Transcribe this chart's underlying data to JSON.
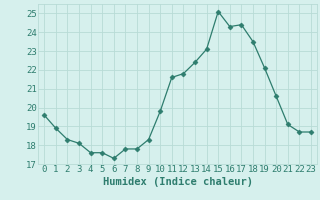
{
  "x": [
    0,
    1,
    2,
    3,
    4,
    5,
    6,
    7,
    8,
    9,
    10,
    11,
    12,
    13,
    14,
    15,
    16,
    17,
    18,
    19,
    20,
    21,
    22,
    23
  ],
  "y": [
    19.6,
    18.9,
    18.3,
    18.1,
    17.6,
    17.6,
    17.3,
    17.8,
    17.8,
    18.3,
    19.8,
    21.6,
    21.8,
    22.4,
    23.1,
    25.1,
    24.3,
    24.4,
    23.5,
    22.1,
    20.6,
    19.1,
    18.7,
    18.7
  ],
  "line_color": "#2e7d6e",
  "marker": "D",
  "marker_size": 2.5,
  "bg_color": "#d6f0ed",
  "grid_color": "#b8dbd6",
  "tick_color": "#2e7d6e",
  "label_color": "#2e7d6e",
  "xlabel": "Humidex (Indice chaleur)",
  "xlim": [
    -0.5,
    23.5
  ],
  "ylim": [
    17,
    25.5
  ],
  "yticks": [
    17,
    18,
    19,
    20,
    21,
    22,
    23,
    24,
    25
  ],
  "xticks": [
    0,
    1,
    2,
    3,
    4,
    5,
    6,
    7,
    8,
    9,
    10,
    11,
    12,
    13,
    14,
    15,
    16,
    17,
    18,
    19,
    20,
    21,
    22,
    23
  ],
  "xlabel_fontsize": 7.5,
  "tick_fontsize": 6.5
}
